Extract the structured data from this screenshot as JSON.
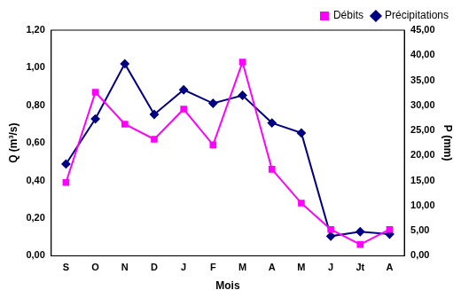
{
  "chart_data": {
    "type": "line",
    "x_label": "Mois",
    "y_label": "Q (m³/s)",
    "y2_label": "P (mm)",
    "categories": [
      "S",
      "O",
      "N",
      "D",
      "J",
      "F",
      "M",
      "A",
      "M",
      "J",
      "Jt",
      "A"
    ],
    "series": [
      {
        "name": "Débits",
        "color": "#ff00ff",
        "marker": "square",
        "axis": "y",
        "values": [
          0.39,
          0.87,
          0.7,
          0.62,
          0.78,
          0.59,
          1.03,
          0.46,
          0.28,
          0.14,
          0.06,
          0.14
        ]
      },
      {
        "name": "Précipitations",
        "color": "#000080",
        "marker": "diamond",
        "axis": "y2",
        "values": [
          18.3,
          27.3,
          38.3,
          28.2,
          33.1,
          30.4,
          32.0,
          26.5,
          24.5,
          3.9,
          4.8,
          4.3
        ]
      }
    ],
    "ylim": [
      0,
      1.2
    ],
    "yticks": [
      {
        "value": 0,
        "label": "0,00"
      },
      {
        "value": 0.2,
        "label": "0,20"
      },
      {
        "value": 0.4,
        "label": "0,40"
      },
      {
        "value": 0.6,
        "label": "0,60"
      },
      {
        "value": 0.8,
        "label": "0,80"
      },
      {
        "value": 1.0,
        "label": "1,00"
      },
      {
        "value": 1.2,
        "label": "1,20"
      }
    ],
    "y2lim": [
      0,
      45
    ],
    "y2ticks": [
      {
        "value": 0,
        "label": "0,00"
      },
      {
        "value": 5,
        "label": "5,00"
      },
      {
        "value": 10,
        "label": "10,00"
      },
      {
        "value": 15,
        "label": "15,00"
      },
      {
        "value": 20,
        "label": "20,00"
      },
      {
        "value": 25,
        "label": "25,00"
      },
      {
        "value": 30,
        "label": "30,00"
      },
      {
        "value": 35,
        "label": "35,00"
      },
      {
        "value": 40,
        "label": "40,00"
      },
      {
        "value": 45,
        "label": "45,00"
      }
    ],
    "grid": false,
    "legend": "upper right"
  }
}
